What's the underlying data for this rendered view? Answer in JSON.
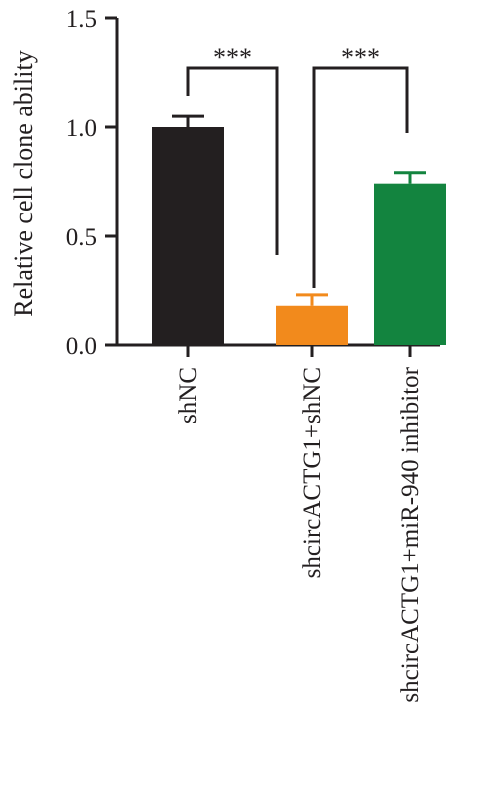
{
  "chart_data": {
    "type": "bar",
    "title": "",
    "xlabel": "",
    "ylabel": "Relative cell clone ability",
    "ylim": [
      0,
      1.5
    ],
    "yticks": [
      0.0,
      0.5,
      1.0,
      1.5
    ],
    "ytick_labels": [
      "0.0",
      "0.5",
      "1.0",
      "1.5"
    ],
    "grid": false,
    "legend": "none",
    "categories": [
      "shNC",
      "shcircACTG1+shNC",
      "shcircACTG1+miR-940 inhibitor"
    ],
    "values": [
      1.0,
      0.18,
      0.74
    ],
    "errors": [
      0.05,
      0.05,
      0.05
    ],
    "colors": [
      "#231f20",
      "#f28a1c",
      "#13843f"
    ],
    "significance": [
      {
        "from": 0,
        "to": 1,
        "label": "***"
      },
      {
        "from": 1,
        "to": 2,
        "label": "***"
      }
    ]
  }
}
